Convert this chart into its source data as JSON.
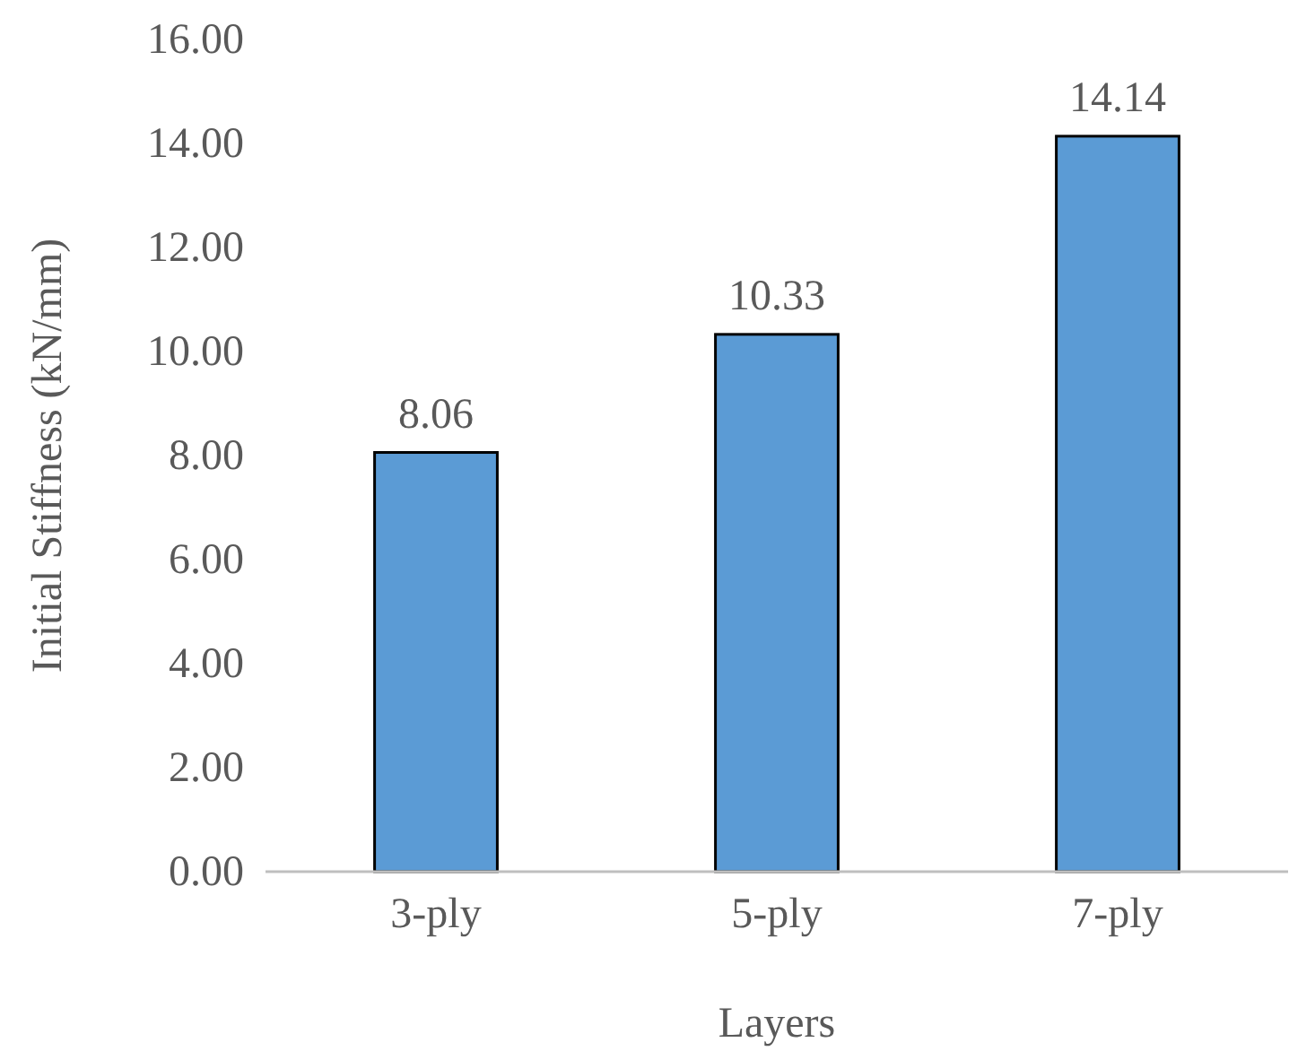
{
  "chart_data": {
    "type": "bar",
    "xlabel": "Layers",
    "ylabel": "Initial Stiffness (kN/mm)",
    "categories": [
      "3-ply",
      "5-ply",
      "7-ply"
    ],
    "values": [
      8.06,
      10.33,
      14.14
    ],
    "color": "#5b9bd5",
    "ylim": [
      0,
      16
    ],
    "yticks": [
      {
        "value": 0,
        "label": "0.00"
      },
      {
        "value": 2,
        "label": "2.00"
      },
      {
        "value": 4,
        "label": "4.00"
      },
      {
        "value": 6,
        "label": "6.00"
      },
      {
        "value": 8,
        "label": "8.00"
      },
      {
        "value": 10,
        "label": "10.00"
      },
      {
        "value": 12,
        "label": "12.00"
      },
      {
        "value": 14,
        "label": "14.00"
      },
      {
        "value": 16,
        "label": "16.00"
      }
    ],
    "grid": false,
    "data_labels": true
  }
}
